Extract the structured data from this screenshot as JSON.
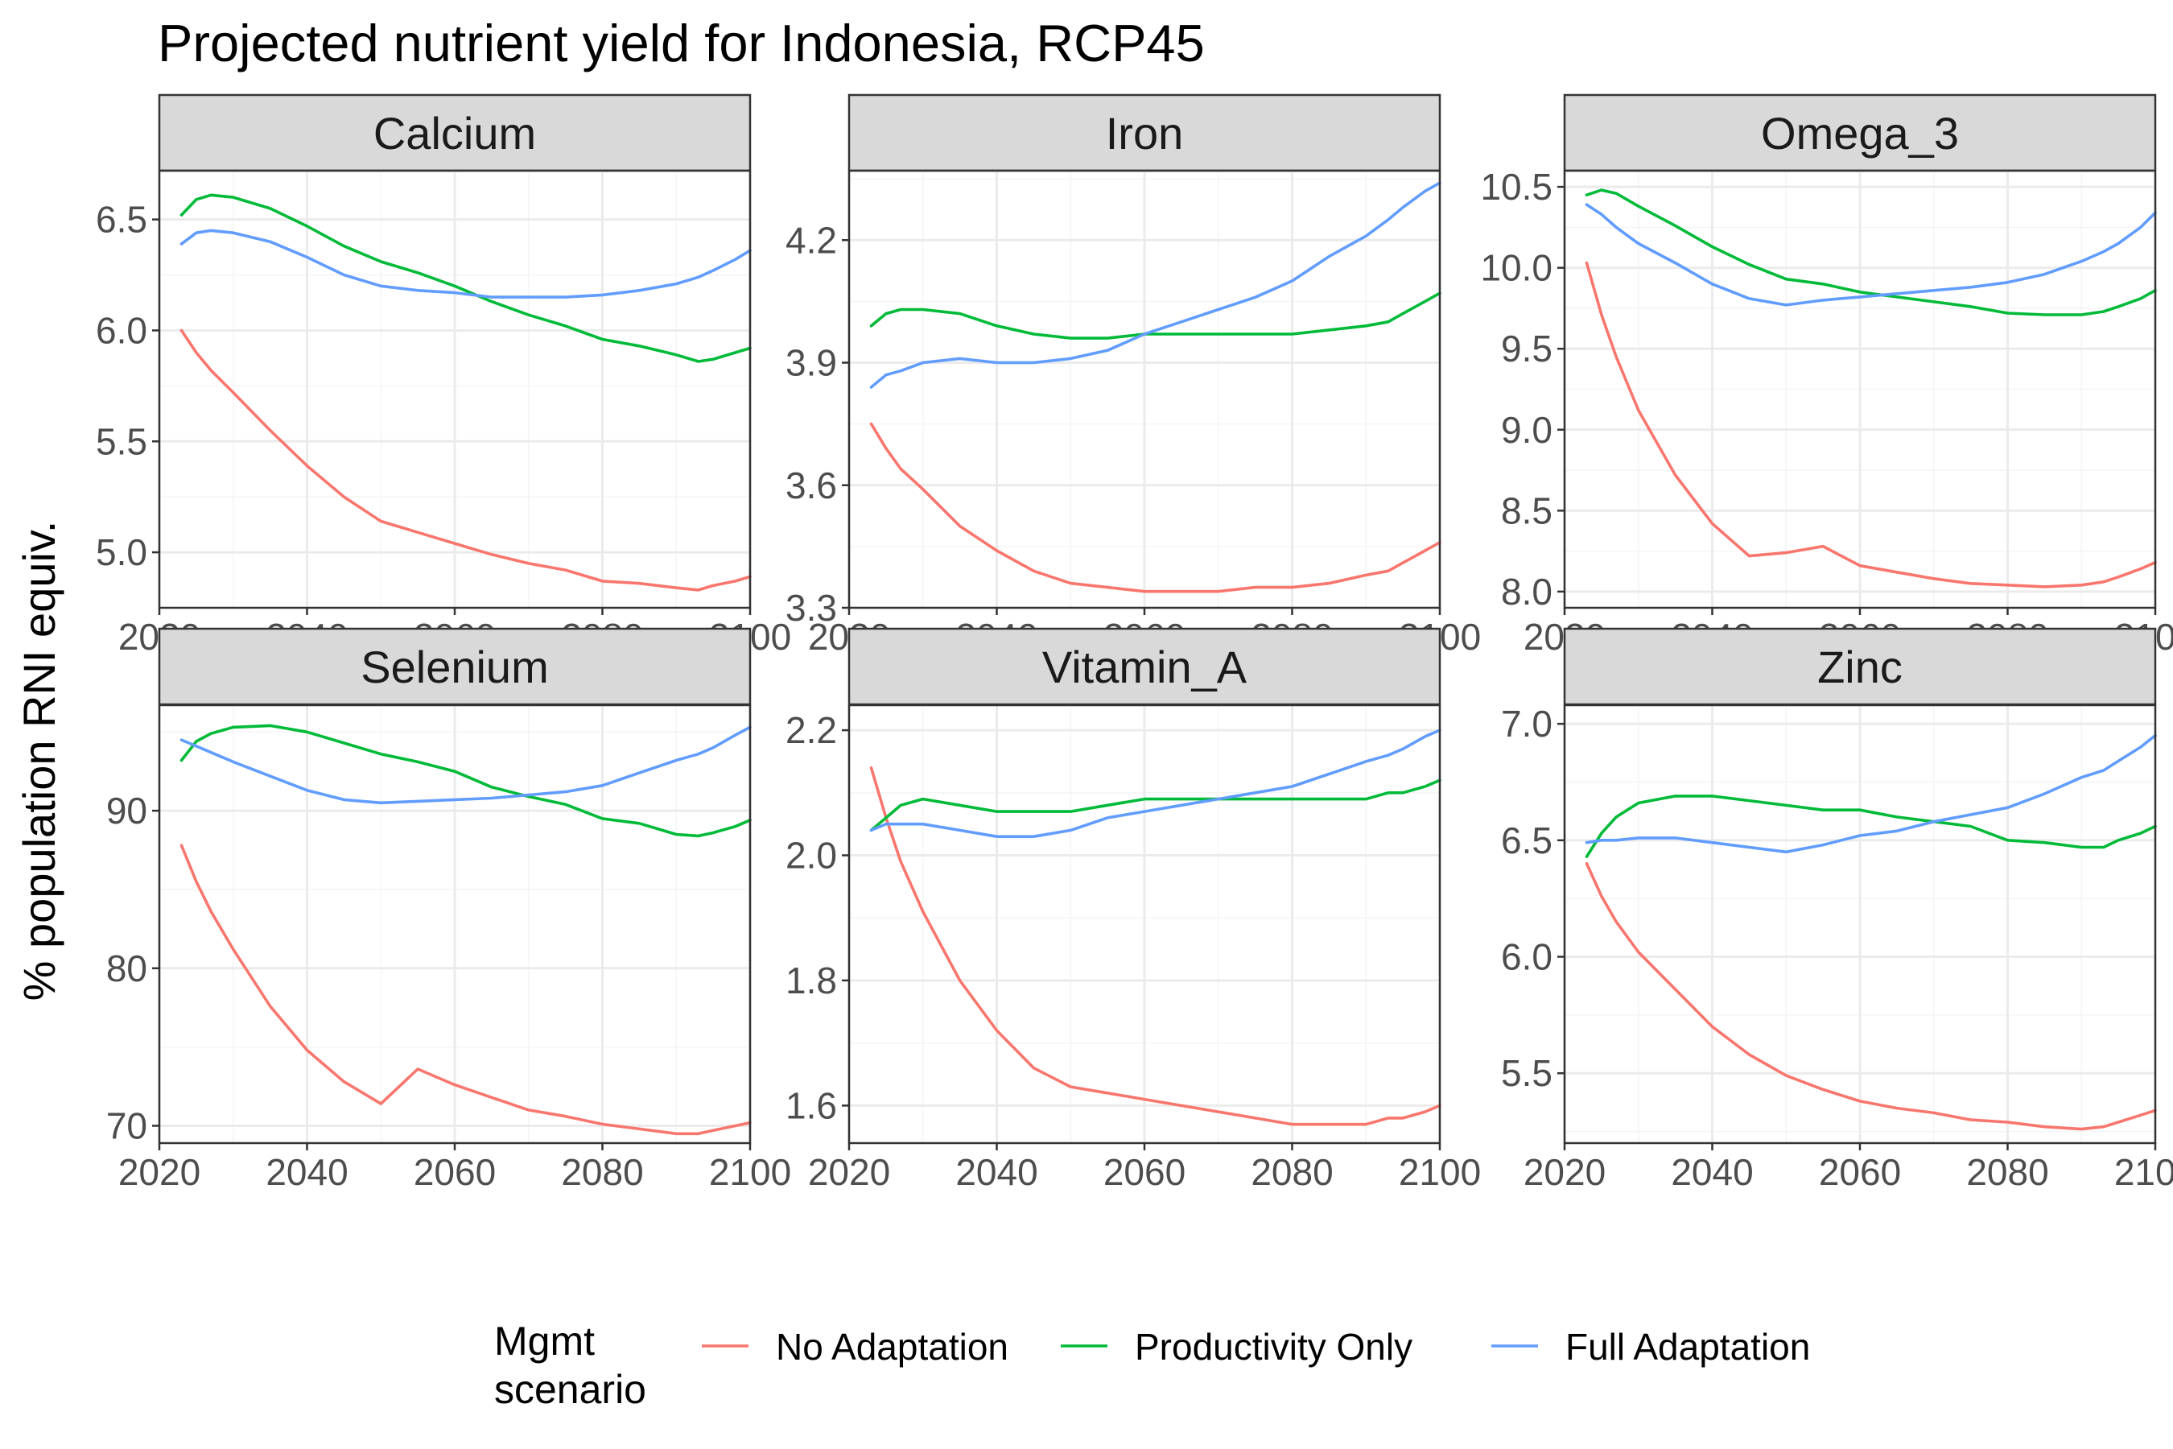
{
  "chart_data": {
    "type": "line",
    "title": "Projected nutrient yield for Indonesia, RCP45",
    "ylabel": "% population RNI equiv.",
    "xlabel": "",
    "xlim": [
      2020,
      2100
    ],
    "x_ticks": [
      2020,
      2040,
      2060,
      2080,
      2100
    ],
    "legend": {
      "title": [
        "Mgmt",
        "scenario"
      ],
      "placement": "bottom",
      "entries": [
        {
          "name": "No Adaptation",
          "color": "#F8766D"
        },
        {
          "name": "Productivity Only",
          "color": "#00BA38"
        },
        {
          "name": "Full Adaptation",
          "color": "#619CFF"
        }
      ]
    },
    "x": [
      2023,
      2025,
      2027,
      2030,
      2035,
      2040,
      2045,
      2050,
      2055,
      2060,
      2065,
      2070,
      2075,
      2080,
      2085,
      2090,
      2093,
      2095,
      2098,
      2100
    ],
    "panels": [
      {
        "name": "Calcium",
        "ylim": [
          4.75,
          6.72
        ],
        "y_ticks": [
          5.0,
          5.5,
          6.0,
          6.5
        ],
        "y_tick_labels": [
          "5.0",
          "5.5",
          "6.0",
          "6.5"
        ],
        "series": [
          {
            "name": "No Adaptation",
            "values": [
              6.0,
              5.9,
              5.82,
              5.72,
              5.55,
              5.39,
              5.25,
              5.14,
              5.09,
              5.04,
              4.99,
              4.95,
              4.92,
              4.87,
              4.86,
              4.84,
              4.83,
              4.85,
              4.87,
              4.89
            ]
          },
          {
            "name": "Productivity Only",
            "values": [
              6.52,
              6.59,
              6.61,
              6.6,
              6.55,
              6.47,
              6.38,
              6.31,
              6.26,
              6.2,
              6.13,
              6.07,
              6.02,
              5.96,
              5.93,
              5.89,
              5.86,
              5.87,
              5.9,
              5.92
            ]
          },
          {
            "name": "Full Adaptation",
            "values": [
              6.39,
              6.44,
              6.45,
              6.44,
              6.4,
              6.33,
              6.25,
              6.2,
              6.18,
              6.17,
              6.15,
              6.15,
              6.15,
              6.16,
              6.18,
              6.21,
              6.24,
              6.27,
              6.32,
              6.36
            ]
          }
        ]
      },
      {
        "name": "Iron",
        "ylim": [
          3.3,
          4.37
        ],
        "y_ticks": [
          3.3,
          3.6,
          3.9,
          4.2
        ],
        "y_tick_labels": [
          "3.3",
          "3.6",
          "3.9",
          "4.2"
        ],
        "series": [
          {
            "name": "No Adaptation",
            "values": [
              3.75,
              3.69,
              3.64,
              3.59,
              3.5,
              3.44,
              3.39,
              3.36,
              3.35,
              3.34,
              3.34,
              3.34,
              3.35,
              3.35,
              3.36,
              3.38,
              3.39,
              3.41,
              3.44,
              3.46
            ]
          },
          {
            "name": "Productivity Only",
            "values": [
              3.99,
              4.02,
              4.03,
              4.03,
              4.02,
              3.99,
              3.97,
              3.96,
              3.96,
              3.97,
              3.97,
              3.97,
              3.97,
              3.97,
              3.98,
              3.99,
              4.0,
              4.02,
              4.05,
              4.07
            ]
          },
          {
            "name": "Full Adaptation",
            "values": [
              3.84,
              3.87,
              3.88,
              3.9,
              3.91,
              3.9,
              3.9,
              3.91,
              3.93,
              3.97,
              4.0,
              4.03,
              4.06,
              4.1,
              4.16,
              4.21,
              4.25,
              4.28,
              4.32,
              4.34
            ]
          }
        ]
      },
      {
        "name": "Omega_3",
        "ylim": [
          7.9,
          10.6
        ],
        "y_ticks": [
          8.0,
          8.5,
          9.0,
          9.5,
          10.0,
          10.5
        ],
        "y_tick_labels": [
          "8.0",
          "8.5",
          "9.0",
          "9.5",
          "10.0",
          "10.5"
        ],
        "series": [
          {
            "name": "No Adaptation",
            "values": [
              10.03,
              9.71,
              9.45,
              9.12,
              8.72,
              8.42,
              8.22,
              8.24,
              8.28,
              8.16,
              8.12,
              8.08,
              8.05,
              8.04,
              8.03,
              8.04,
              8.06,
              8.09,
              8.14,
              8.18
            ]
          },
          {
            "name": "Productivity Only",
            "values": [
              10.45,
              10.48,
              10.46,
              10.38,
              10.26,
              10.13,
              10.02,
              9.93,
              9.9,
              9.85,
              9.82,
              9.79,
              9.76,
              9.72,
              9.71,
              9.71,
              9.73,
              9.76,
              9.81,
              9.86
            ]
          },
          {
            "name": "Full Adaptation",
            "values": [
              10.39,
              10.33,
              10.25,
              10.15,
              10.03,
              9.9,
              9.81,
              9.77,
              9.8,
              9.82,
              9.84,
              9.86,
              9.88,
              9.91,
              9.96,
              10.04,
              10.1,
              10.15,
              10.25,
              10.34
            ]
          }
        ]
      },
      {
        "name": "Selenium",
        "ylim": [
          68.9,
          96.7
        ],
        "y_ticks": [
          70,
          80,
          90
        ],
        "y_tick_labels": [
          "70",
          "80",
          "90"
        ],
        "series": [
          {
            "name": "No Adaptation",
            "values": [
              87.8,
              85.5,
              83.6,
              81.2,
              77.6,
              74.8,
              72.8,
              71.4,
              73.6,
              72.6,
              71.8,
              71.0,
              70.6,
              70.1,
              69.8,
              69.5,
              69.5,
              69.7,
              70.0,
              70.2
            ]
          },
          {
            "name": "Productivity Only",
            "values": [
              93.2,
              94.4,
              94.9,
              95.3,
              95.4,
              95.0,
              94.3,
              93.6,
              93.1,
              92.5,
              91.5,
              90.9,
              90.4,
              89.5,
              89.2,
              88.5,
              88.4,
              88.6,
              89.0,
              89.4
            ]
          },
          {
            "name": "Full Adaptation",
            "values": [
              94.5,
              94.1,
              93.7,
              93.1,
              92.2,
              91.3,
              90.7,
              90.5,
              90.6,
              90.7,
              90.8,
              91.0,
              91.2,
              91.6,
              92.4,
              93.2,
              93.6,
              94.0,
              94.8,
              95.3
            ]
          }
        ]
      },
      {
        "name": "Vitamin_A",
        "ylim": [
          1.54,
          2.24
        ],
        "y_ticks": [
          1.6,
          1.8,
          2.0,
          2.2
        ],
        "y_tick_labels": [
          "1.6",
          "1.8",
          "2.0",
          "2.2"
        ],
        "series": [
          {
            "name": "No Adaptation",
            "values": [
              2.14,
              2.06,
              1.99,
              1.91,
              1.8,
              1.72,
              1.66,
              1.63,
              1.62,
              1.61,
              1.6,
              1.59,
              1.58,
              1.57,
              1.57,
              1.57,
              1.58,
              1.58,
              1.59,
              1.6
            ]
          },
          {
            "name": "Productivity Only",
            "values": [
              2.04,
              2.06,
              2.08,
              2.09,
              2.08,
              2.07,
              2.07,
              2.07,
              2.08,
              2.09,
              2.09,
              2.09,
              2.09,
              2.09,
              2.09,
              2.09,
              2.1,
              2.1,
              2.11,
              2.12
            ]
          },
          {
            "name": "Full Adaptation",
            "values": [
              2.04,
              2.05,
              2.05,
              2.05,
              2.04,
              2.03,
              2.03,
              2.04,
              2.06,
              2.07,
              2.08,
              2.09,
              2.1,
              2.11,
              2.13,
              2.15,
              2.16,
              2.17,
              2.19,
              2.2
            ]
          }
        ]
      },
      {
        "name": "Zinc",
        "ylim": [
          5.2,
          7.08
        ],
        "y_ticks": [
          5.5,
          6.0,
          6.5,
          7.0
        ],
        "y_tick_labels": [
          "5.5",
          "6.0",
          "6.5",
          "7.0"
        ],
        "series": [
          {
            "name": "No Adaptation",
            "values": [
              6.4,
              6.26,
              6.15,
              6.02,
              5.86,
              5.7,
              5.58,
              5.49,
              5.43,
              5.38,
              5.35,
              5.33,
              5.3,
              5.29,
              5.27,
              5.26,
              5.27,
              5.29,
              5.32,
              5.34
            ]
          },
          {
            "name": "Productivity Only",
            "values": [
              6.43,
              6.53,
              6.6,
              6.66,
              6.69,
              6.69,
              6.67,
              6.65,
              6.63,
              6.63,
              6.6,
              6.58,
              6.56,
              6.5,
              6.49,
              6.47,
              6.47,
              6.5,
              6.53,
              6.56
            ]
          },
          {
            "name": "Full Adaptation",
            "values": [
              6.49,
              6.5,
              6.5,
              6.51,
              6.51,
              6.49,
              6.47,
              6.45,
              6.48,
              6.52,
              6.54,
              6.58,
              6.61,
              6.64,
              6.7,
              6.77,
              6.8,
              6.84,
              6.9,
              6.95
            ]
          }
        ]
      }
    ]
  }
}
